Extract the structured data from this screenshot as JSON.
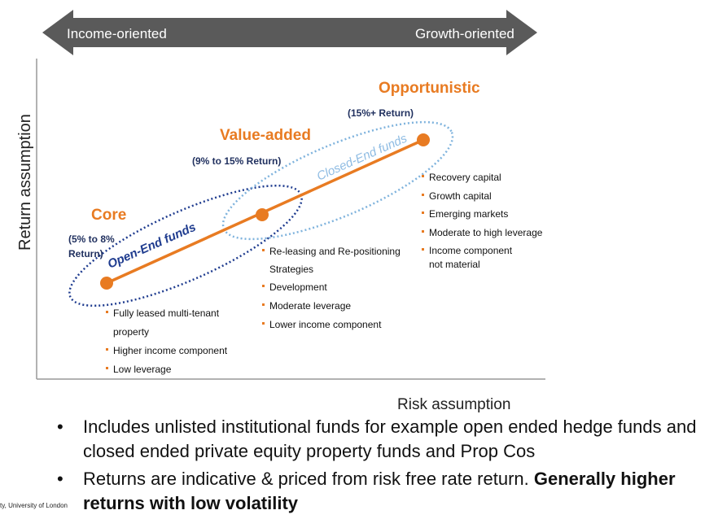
{
  "arrow": {
    "left_label": "Income-oriented",
    "right_label": "Growth-oriented",
    "color": "#5a5a5a"
  },
  "axes": {
    "y_label": "Return assumption",
    "x_label": "Risk assumption"
  },
  "colors": {
    "orange": "#e87b22",
    "open_end_ellipse": "#1f3c8f",
    "closed_end_ellipse": "#7fb3dd",
    "closed_end_text": "#8fbce3"
  },
  "stages": [
    {
      "title": "Core",
      "return_line1": "(5% to 8%",
      "return_line2": "Return)",
      "bullets": [
        "Fully leased multi-tenant",
        "property",
        "Higher income component",
        "Low leverage"
      ]
    },
    {
      "title": "Value-added",
      "return_line1": "(9% to 15% Return)",
      "bullets": [
        "Re-leasing and Re-positioning",
        "Strategies",
        "Development",
        "Moderate leverage",
        "Lower income component"
      ]
    },
    {
      "title": "Opportunistic",
      "return_line1": "(15%+ Return)",
      "bullets": [
        "Recovery capital",
        "Growth capital",
        "Emerging markets",
        "Moderate to high leverage",
        "Income component",
        "not material"
      ]
    }
  ],
  "fund_types": {
    "open_end": "Open-End funds",
    "closed_end": "Closed-End funds"
  },
  "notes": [
    {
      "text": "Includes unlisted institutional funds for example open ended hedge funds and closed ended private equity property funds and Prop Cos",
      "bold": ""
    },
    {
      "text": "Returns are indicative & priced from risk free rate return. ",
      "bold": "Generally higher returns with low volatility"
    }
  ],
  "footer": "ty, University of London"
}
